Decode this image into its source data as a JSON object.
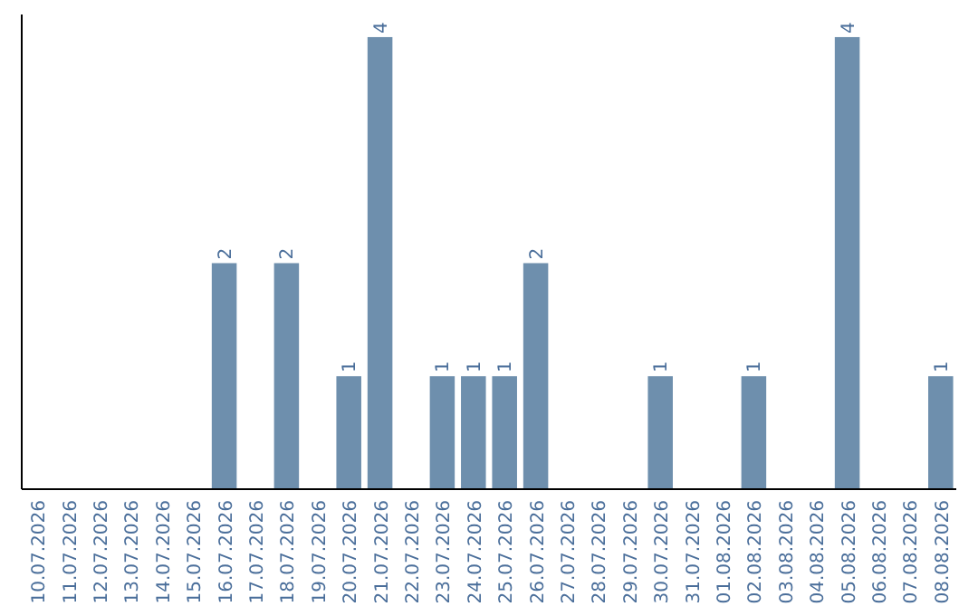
{
  "chart_data": {
    "type": "bar",
    "categories": [
      "10.07.2026",
      "11.07.2026",
      "12.07.2026",
      "13.07.2026",
      "14.07.2026",
      "15.07.2026",
      "16.07.2026",
      "17.07.2026",
      "18.07.2026",
      "19.07.2026",
      "20.07.2026",
      "21.07.2026",
      "22.07.2026",
      "23.07.2026",
      "24.07.2026",
      "25.07.2026",
      "26.07.2026",
      "27.07.2026",
      "28.07.2026",
      "29.07.2026",
      "30.07.2026",
      "31.07.2026",
      "01.08.2026",
      "02.08.2026",
      "03.08.2026",
      "04.08.2026",
      "05.08.2026",
      "06.08.2026",
      "07.08.2026",
      "08.08.2026"
    ],
    "values": [
      0,
      0,
      0,
      0,
      0,
      0,
      2,
      0,
      2,
      0,
      1,
      4,
      0,
      1,
      1,
      1,
      2,
      0,
      0,
      0,
      1,
      0,
      0,
      1,
      0,
      0,
      4,
      0,
      0,
      1
    ],
    "value_labels": [
      null,
      null,
      null,
      null,
      null,
      null,
      "2",
      null,
      "2",
      null,
      "1",
      "4",
      null,
      "1",
      "1",
      "1",
      "2",
      null,
      null,
      null,
      "1",
      null,
      null,
      "1",
      null,
      null,
      "4",
      null,
      null,
      "1"
    ],
    "color": "#6e8fad",
    "ylim": [
      0,
      4.2
    ],
    "tick_labels": "x"
  }
}
